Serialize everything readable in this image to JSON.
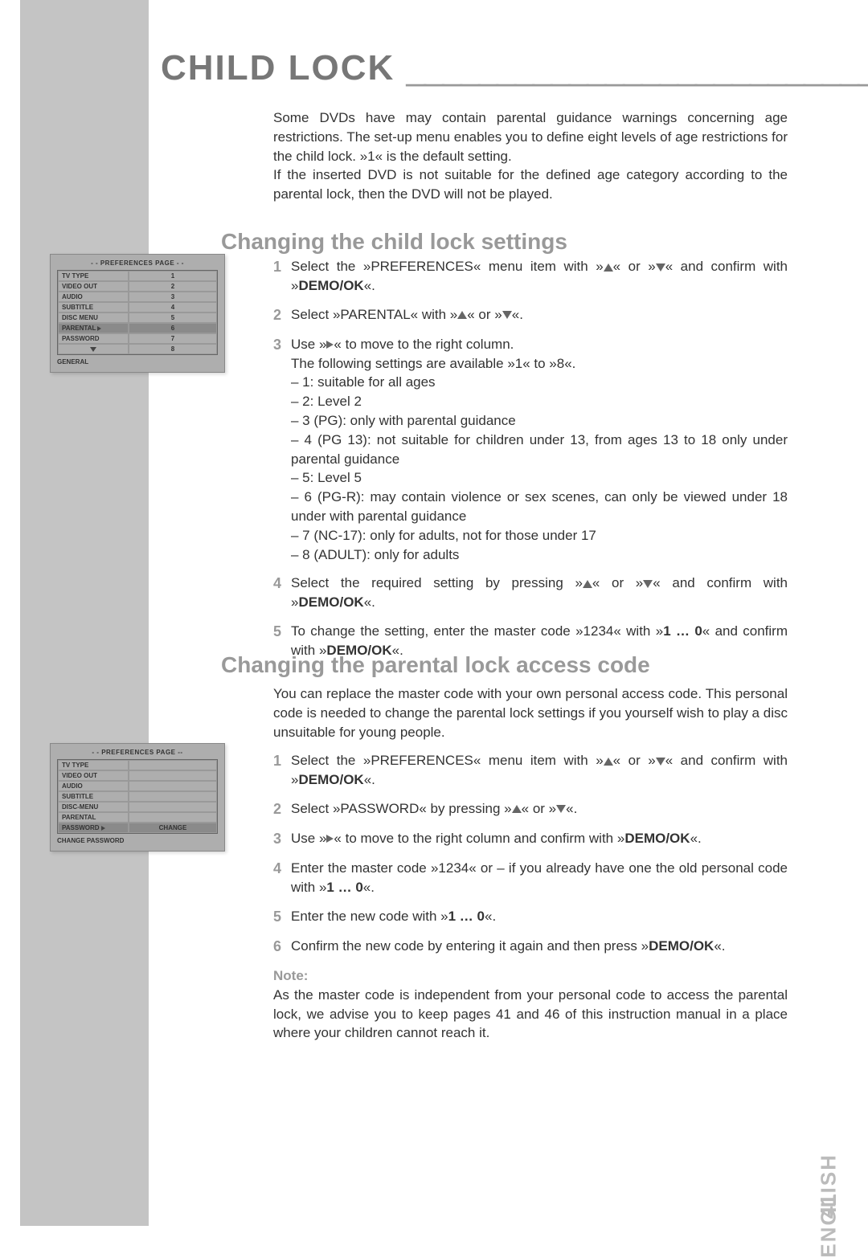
{
  "title": "CHILD LOCK",
  "underline": "_______________________________________",
  "intro": {
    "p1": "Some DVDs have may contain parental guidance warnings concerning age restrictions. The set-up menu enables you to define eight levels of age restrictions for the child lock. »1« is the default setting.",
    "p2": "If the inserted DVD is not suitable for the defined age category according to the parental lock, then the DVD will not be played."
  },
  "section1": {
    "heading": "Changing the child lock settings",
    "steps": {
      "s1a": "Select the »PREFERENCES« menu item with »",
      "s1b": "« or »",
      "s1c": "« and confirm with »",
      "s1d": "«.",
      "s2a": "Select »PARENTAL« with »",
      "s2b": "« or »",
      "s2c": "«.",
      "s3a": "Use »",
      "s3b": "« to move to the right column.",
      "s3c": "The following settings are available »1« to »8«.",
      "l1": "– 1: suitable for all ages",
      "l2": "– 2: Level 2",
      "l3": "– 3 (PG): only with parental guidance",
      "l4": "– 4 (PG 13): not suitable for children under 13, from ages 13 to 18 only under parental guidance",
      "l5": "– 5: Level 5",
      "l6": "– 6 (PG-R): may contain violence or sex scenes, can only be viewed under 18 under with parental guidance",
      "l7": "– 7 (NC-17): only for adults, not for those under 17",
      "l8": "– 8 (ADULT): only for adults",
      "s4a": "Select the required setting by pressing »",
      "s4b": "« or »",
      "s4c": "« and confirm with »",
      "s4d": "«.",
      "s5a": "To change the setting, enter the master code »1234« with »",
      "s5b": "« and confirm with »",
      "s5c": "«."
    }
  },
  "section2": {
    "heading": "Changing the parental lock access code",
    "intro": "You can replace the master code with your own personal access code. This personal code is needed to change the parental lock settings if you yourself wish to play a disc unsuitable for young people.",
    "steps": {
      "s1a": "Select the »PREFERENCES« menu item with »",
      "s1b": "« or »",
      "s1c": "« and confirm with »",
      "s1d": "«.",
      "s2a": "Select »PASSWORD« by pressing »",
      "s2b": "« or »",
      "s2c": "«.",
      "s3a": "Use »",
      "s3b": "« to move to the right column and confirm with »",
      "s3c": "«.",
      "s4a": "Enter the master code »1234« or – if you already have one the old personal code with »",
      "s4b": "«.",
      "s5a": "Enter the new code with »",
      "s5b": "«.",
      "s6a": "Confirm the new code by entering it again and then press »",
      "s6b": "«."
    },
    "note_label": "Note:",
    "note": "As the master code is independent from your personal code to access the parental lock, we advise you to keep pages 41 and 46 of this instruction manual in a place where your children cannot reach it."
  },
  "tokens": {
    "demo_ok": "DEMO/OK",
    "onezero": "1 … 0"
  },
  "menu1": {
    "header": "- - PREFERENCES PAGE - -",
    "rows": [
      {
        "l": "TV TYPE",
        "r": "1"
      },
      {
        "l": "VIDEO OUT",
        "r": "2"
      },
      {
        "l": "AUDIO",
        "r": "3"
      },
      {
        "l": "SUBTITLE",
        "r": "4"
      },
      {
        "l": "DISC MENU",
        "r": "5"
      },
      {
        "l": "PARENTAL",
        "r": "6",
        "highlight": true,
        "arrow": true
      },
      {
        "l": "PASSWORD",
        "r": "7"
      }
    ],
    "extra_row": "8",
    "footer": "GENERAL"
  },
  "menu2": {
    "header": "- - PREFERENCES PAGE --",
    "rows": [
      {
        "l": "TV TYPE",
        "r": ""
      },
      {
        "l": "VIDEO OUT",
        "r": ""
      },
      {
        "l": "AUDIO",
        "r": ""
      },
      {
        "l": "SUBTITLE",
        "r": ""
      },
      {
        "l": "DISC-MENU",
        "r": ""
      },
      {
        "l": "PARENTAL",
        "r": ""
      },
      {
        "l": "PASSWORD",
        "r": "CHANGE",
        "highlight": true,
        "arrow": true
      }
    ],
    "footer": "CHANGE PASSWORD"
  },
  "footer": {
    "lang": "ENGLISH",
    "page": "41"
  }
}
